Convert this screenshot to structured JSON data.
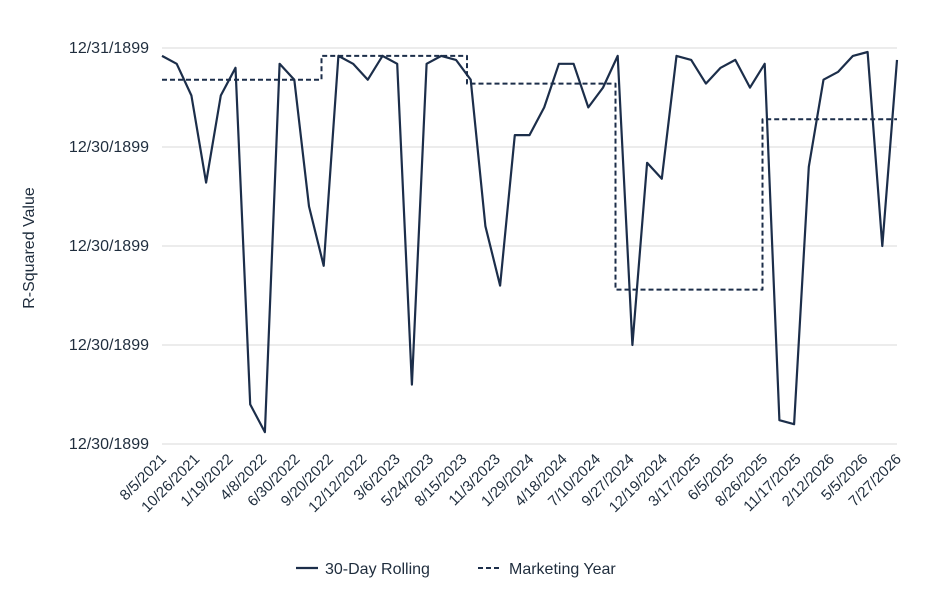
{
  "chart_data": {
    "type": "line",
    "ylabel": "R-Squared Value",
    "y_tick_labels": [
      "12/31/1899",
      "12/30/1899",
      "12/30/1899",
      "12/30/1899",
      "12/30/1899"
    ],
    "ylim": [
      0,
      1
    ],
    "x_tick_labels": [
      "8/5/2021",
      "10/26/2021",
      "1/19/2022",
      "4/8/2022",
      "6/30/2022",
      "9/20/2022",
      "12/12/2022",
      "3/6/2023",
      "5/24/2023",
      "8/15/2023",
      "11/3/2023",
      "1/29/2024",
      "4/18/2024",
      "7/10/2024",
      "9/27/2024",
      "12/19/2024",
      "3/17/2025",
      "6/5/2025",
      "8/26/2025",
      "11/17/2025",
      "2/12/2026",
      "5/5/2026",
      "7/27/2026"
    ],
    "grid": true,
    "legend_placement": "bottom",
    "colors": {
      "line": "#1c2e4a",
      "grid": "#d9d9d9"
    },
    "series": [
      {
        "name": "30-Day Rolling",
        "style": "solid",
        "x": [
          0.0,
          0.02,
          0.04,
          0.06,
          0.08,
          0.1,
          0.12,
          0.14,
          0.16,
          0.18,
          0.2,
          0.22,
          0.24,
          0.26,
          0.28,
          0.3,
          0.32,
          0.34,
          0.36,
          0.38,
          0.4,
          0.42,
          0.44,
          0.46,
          0.48,
          0.5,
          0.52,
          0.54,
          0.56,
          0.58,
          0.6,
          0.62,
          0.64,
          0.66,
          0.68,
          0.7,
          0.72,
          0.74,
          0.76,
          0.78,
          0.8,
          0.82,
          0.84,
          0.86,
          0.88,
          0.9,
          0.92,
          0.94,
          0.96,
          0.98,
          1.0
        ],
        "values": [
          0.98,
          0.96,
          0.88,
          0.66,
          0.88,
          0.95,
          0.1,
          0.03,
          0.96,
          0.92,
          0.6,
          0.45,
          0.98,
          0.96,
          0.92,
          0.98,
          0.96,
          0.15,
          0.96,
          0.98,
          0.97,
          0.92,
          0.55,
          0.4,
          0.78,
          0.78,
          0.85,
          0.96,
          0.96,
          0.85,
          0.9,
          0.98,
          0.25,
          0.71,
          0.67,
          0.98,
          0.97,
          0.91,
          0.95,
          0.97,
          0.9,
          0.96,
          0.06,
          0.05,
          0.7,
          0.92,
          0.94,
          0.98,
          0.99,
          0.5,
          0.97
        ]
      },
      {
        "name": "Marketing Year",
        "style": "dashed",
        "x": [
          0.0,
          0.217,
          0.217,
          0.415,
          0.415,
          0.617,
          0.617,
          0.817,
          0.817,
          1.0
        ],
        "values": [
          0.92,
          0.92,
          0.98,
          0.98,
          0.91,
          0.91,
          0.39,
          0.39,
          0.82,
          0.82
        ]
      }
    ]
  }
}
